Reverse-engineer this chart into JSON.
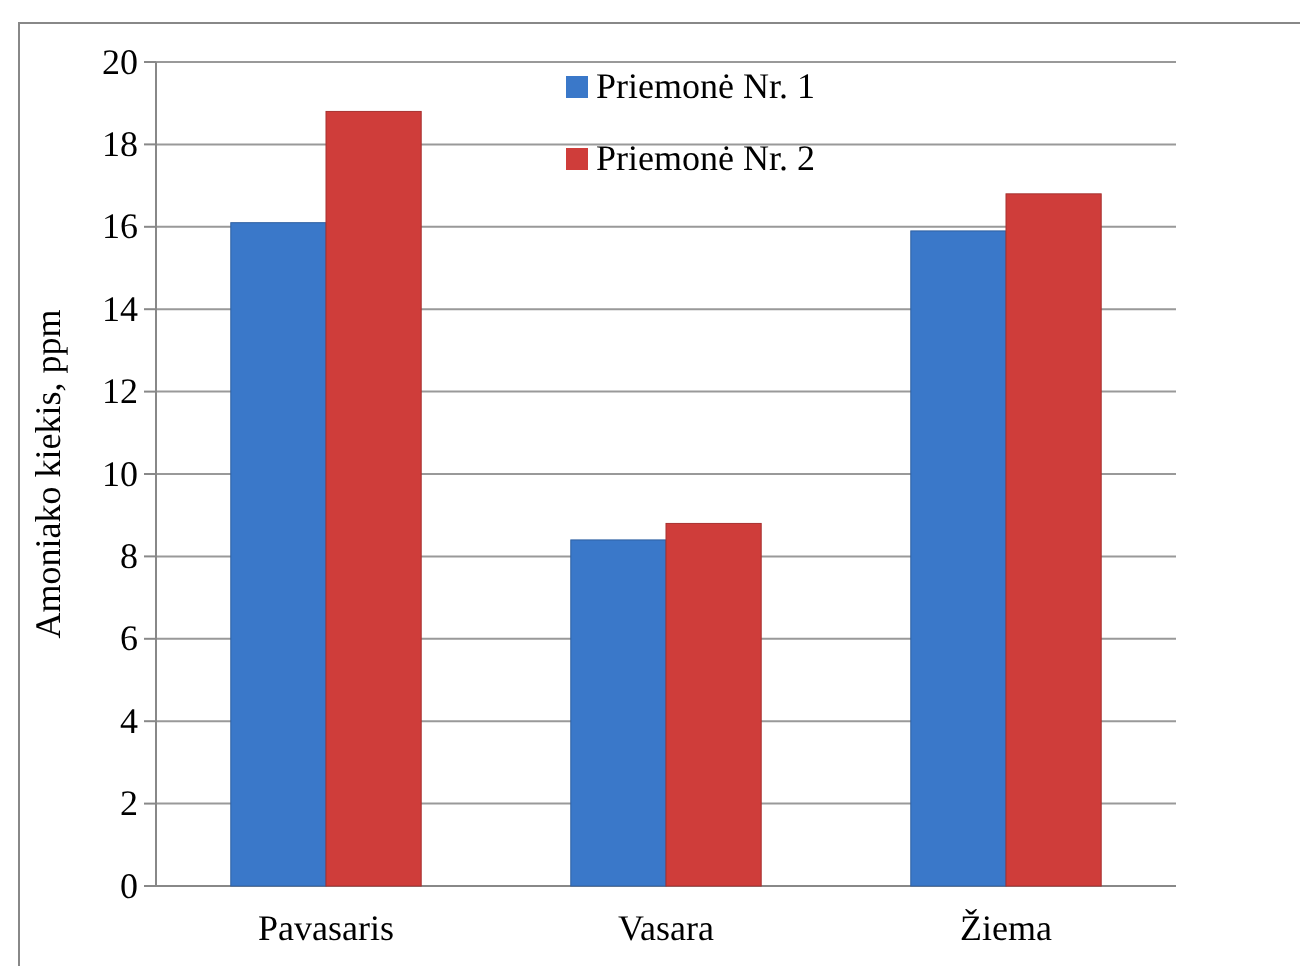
{
  "chart_data": {
    "type": "bar",
    "ylabel": "Amoniako kiekis, ppm",
    "categories": [
      "Pavasaris",
      "Vasara",
      "Žiema"
    ],
    "series": [
      {
        "name": "Priemonė Nr. 1",
        "color": "#3a78c9",
        "values": [
          16.1,
          8.4,
          15.9
        ]
      },
      {
        "name": "Priemonė Nr. 2",
        "color": "#cf3d3a",
        "values": [
          18.8,
          8.8,
          16.8
        ]
      }
    ],
    "ylim": [
      0,
      20
    ],
    "yticks": [
      0,
      2,
      4,
      6,
      8,
      10,
      12,
      14,
      16,
      18,
      20
    ],
    "grid": "y",
    "legend": "top"
  }
}
